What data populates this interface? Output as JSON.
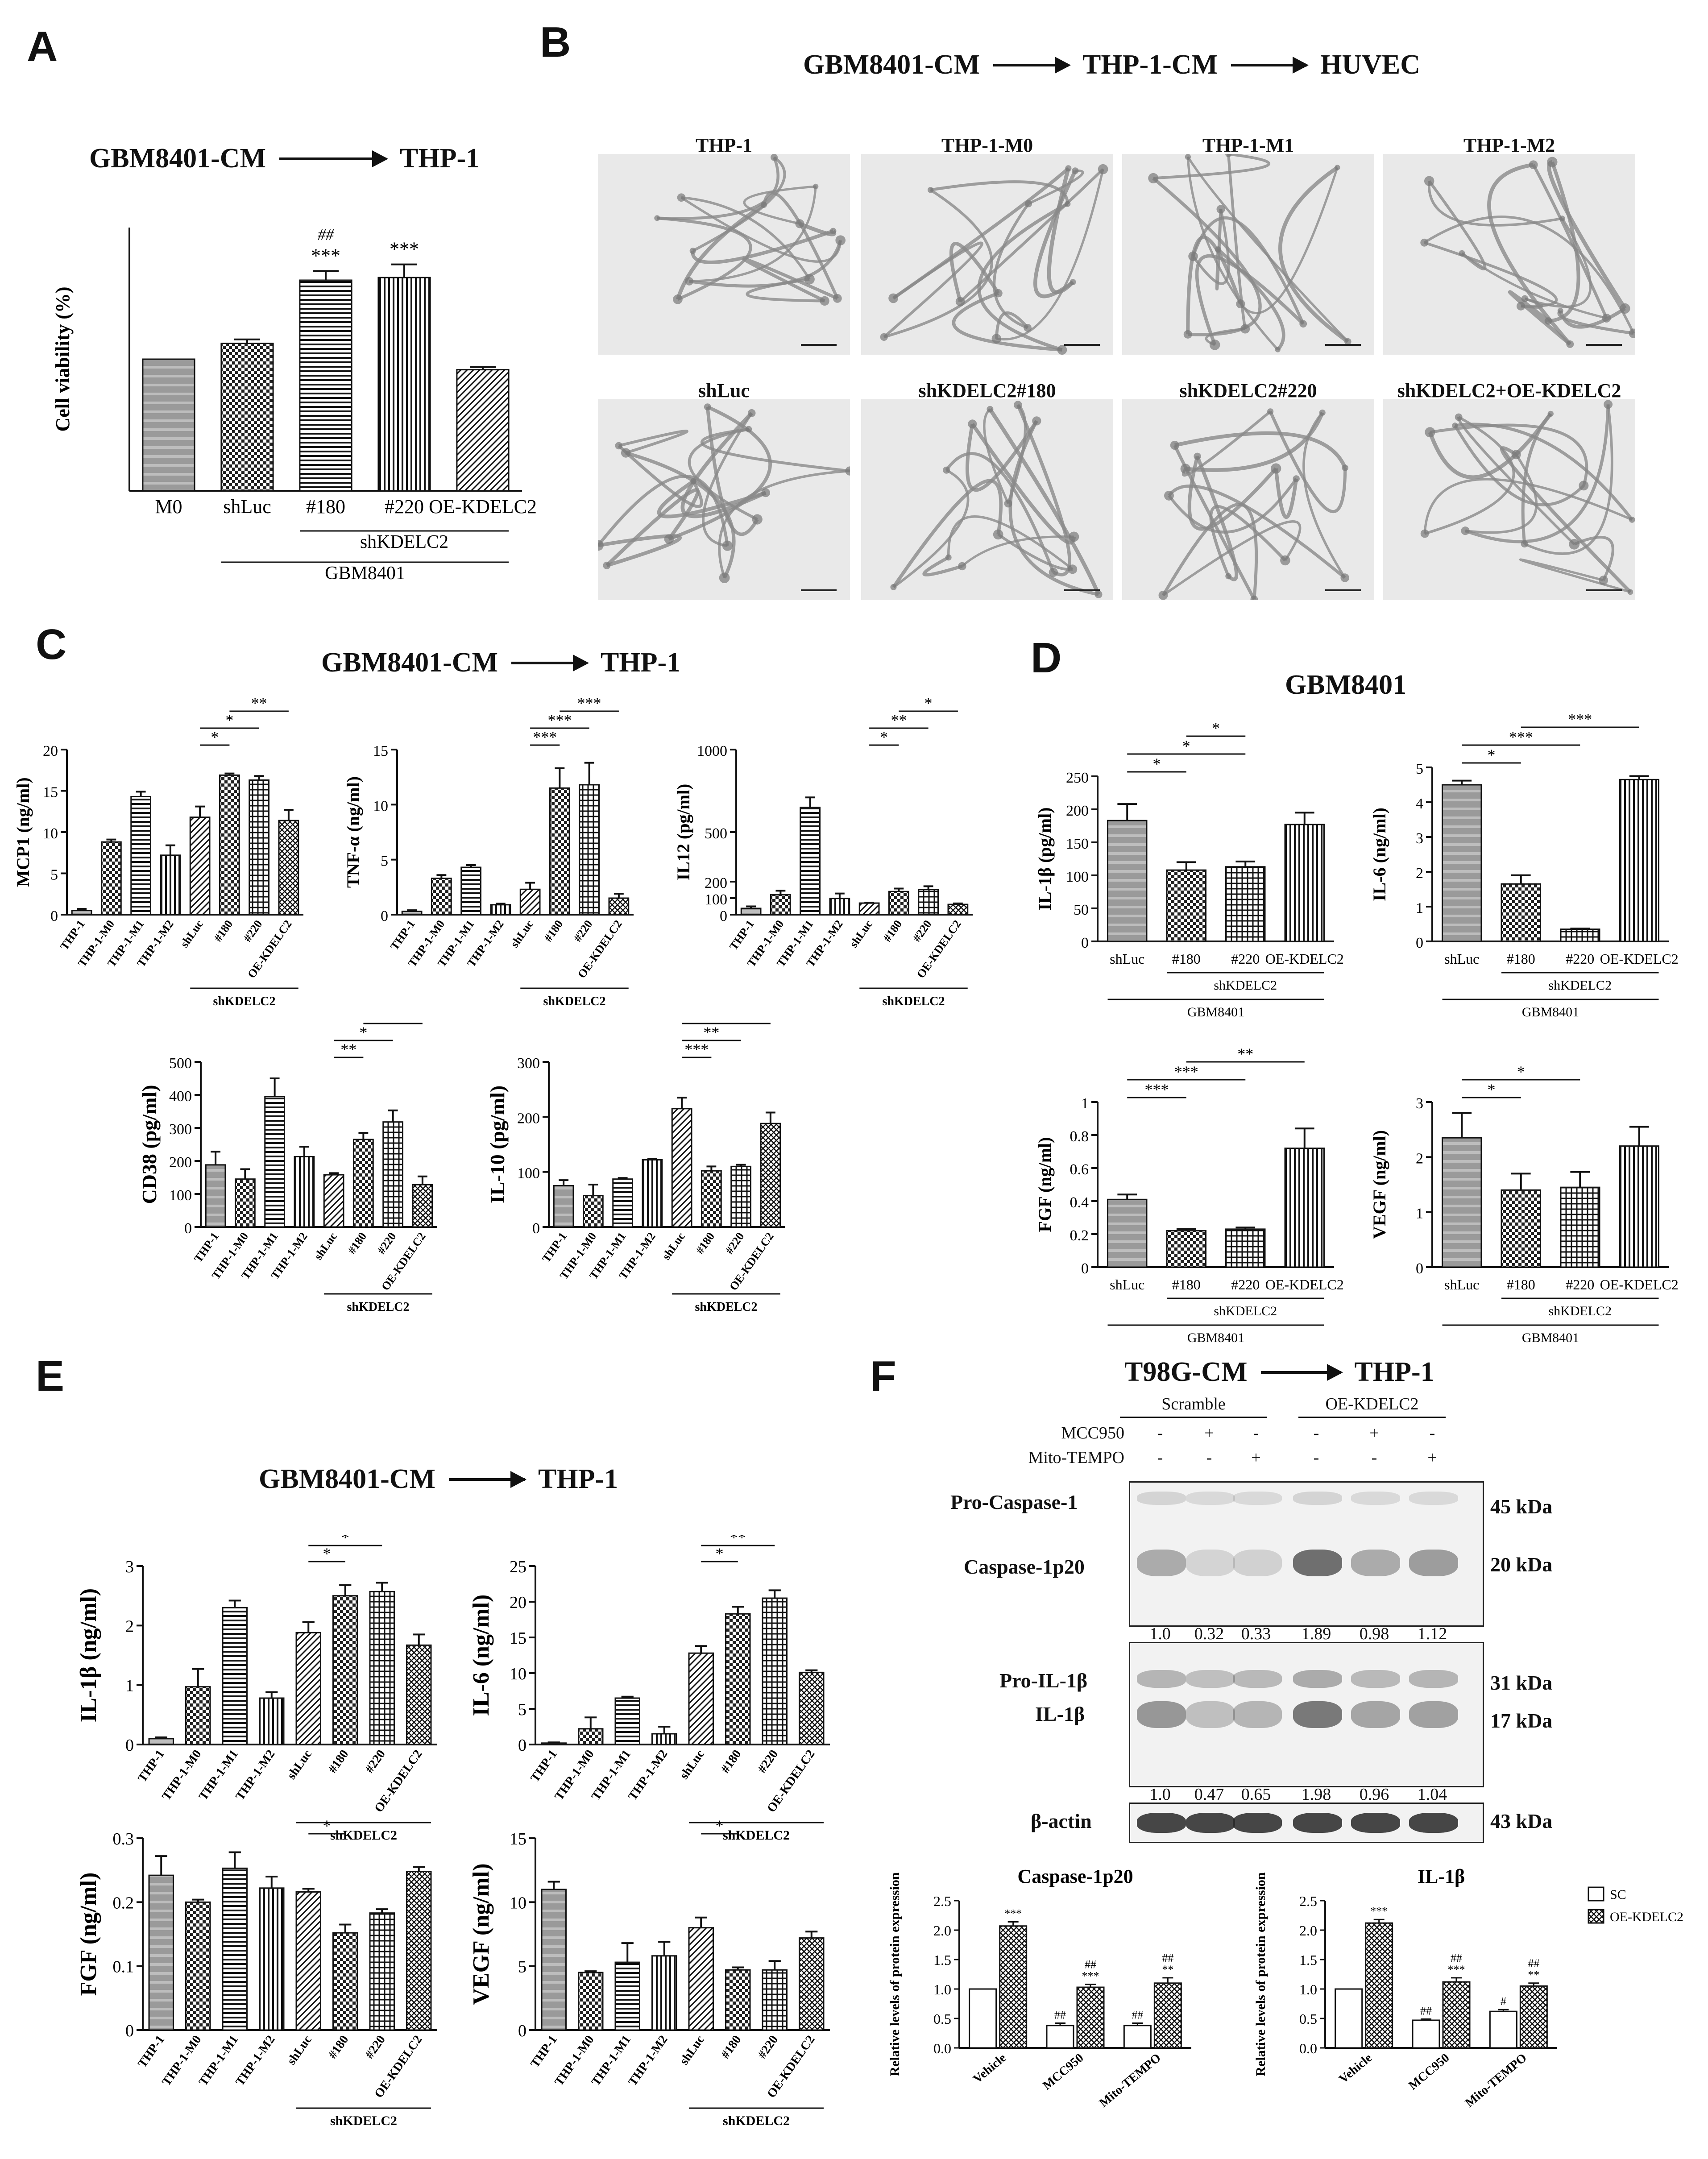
{
  "panels": {
    "A": {
      "letter": "A",
      "flow": {
        "from": "GBM8401-CM",
        "to": "THP-1"
      },
      "chart": {
        "ylabel": "Cell viability (%)",
        "yticks": [
          "0",
          "50",
          "100",
          "150",
          "200"
        ],
        "categories": [
          "M0",
          "shLuc",
          "#180",
          "#220",
          "OE-KDELC2"
        ],
        "group1": "shKDELC2",
        "group2": "GBM8401",
        "sig": [
          "",
          "",
          "***",
          "***",
          ""
        ],
        "sig2": [
          "",
          "",
          "##",
          "",
          ""
        ]
      }
    },
    "B": {
      "letter": "B",
      "flow": {
        "a": "GBM8401-CM",
        "b": "THP-1-CM",
        "c": "HUVEC"
      },
      "images_top": [
        "THP-1",
        "THP-1-M0",
        "THP-1-M1",
        "THP-1-M2"
      ],
      "images_bottom": [
        "shLuc",
        "shKDELC2#180",
        "shKDELC2#220",
        "shKDELC2+OE-KDELC2"
      ]
    },
    "C": {
      "letter": "C",
      "flow": {
        "from": "GBM8401-CM",
        "to": "THP-1"
      },
      "group": "shKDELC2",
      "cats": [
        "THP-1",
        "THP-1-M0",
        "THP-1-M1",
        "THP-1-M2",
        "shLuc",
        "#180",
        "#220",
        "OE-KDELC2"
      ]
    },
    "D": {
      "letter": "D",
      "title": "GBM8401",
      "group1": "shKDELC2",
      "group2": "GBM8401",
      "cats": [
        "shLuc",
        "#180",
        "#220",
        "OE-KDELC2"
      ]
    },
    "E": {
      "letter": "E",
      "flow": {
        "from": "GBM8401-CM",
        "to": "THP-1"
      },
      "group": "shKDELC2",
      "cats": [
        "THP-1",
        "THP-1-M0",
        "THP-1-M1",
        "THP-1-M2",
        "shLuc",
        "#180",
        "#220",
        "OE-KDELC2"
      ]
    },
    "F": {
      "letter": "F",
      "flow": {
        "from": "T98G-CM",
        "to": "THP-1"
      },
      "groups": [
        "Scramble",
        "OE-KDELC2"
      ],
      "rows": [
        {
          "label": "MCC950",
          "signs": [
            "-",
            "+",
            "-",
            "-",
            "+",
            "-"
          ]
        },
        {
          "label": "Mito-TEMPO",
          "signs": [
            "-",
            "-",
            "+",
            "-",
            "-",
            "+"
          ]
        }
      ],
      "blot1": {
        "labels_left": [
          "Pro-Caspase-1",
          "Caspase-1p20"
        ],
        "labels_right": [
          "45 kDa",
          "20 kDa"
        ],
        "quant": [
          "1.0",
          "0.32",
          "0.33",
          "1.89",
          "0.98",
          "1.12"
        ]
      },
      "blot2": {
        "labels_left": [
          "Pro-IL-1β",
          "IL-1β"
        ],
        "labels_right": [
          "31 kDa",
          "17 kDa"
        ],
        "quant": [
          "1.0",
          "0.47",
          "0.65",
          "1.98",
          "0.96",
          "1.04"
        ]
      },
      "blot3": {
        "labels_left": [
          "β-actin"
        ],
        "labels_right": [
          "43 kDa"
        ]
      },
      "legend": [
        "SC",
        "OE-KDELC2"
      ]
    }
  },
  "chart_data": [
    {
      "id": "A",
      "type": "bar",
      "categories": [
        "M0",
        "shLuc",
        "#180",
        "#220",
        "OE-KDELC2"
      ],
      "values": [
        100,
        112,
        160,
        162,
        92
      ],
      "errors": [
        0,
        3,
        7,
        10,
        2
      ],
      "ylabel": "Cell viability (%)",
      "ylim": [
        0,
        200
      ]
    },
    {
      "id": "C1",
      "type": "bar",
      "ylabel": "MCP1 (ng/ml)",
      "ylim": [
        0,
        20
      ],
      "yticks": [
        0,
        5,
        10,
        15,
        20
      ],
      "values": [
        0.5,
        8.8,
        14.3,
        7.2,
        11.8,
        16.9,
        16.3,
        11.4
      ],
      "errors": [
        0.2,
        0.3,
        0.6,
        1.2,
        1.3,
        0.2,
        0.5,
        1.3
      ],
      "sig": [
        {
          "from": 4,
          "to": 5,
          "label": "*"
        },
        {
          "from": 4,
          "to": 6,
          "label": "*"
        },
        {
          "from": 5,
          "to": 7,
          "label": "**"
        },
        {
          "from": 6,
          "to": 7,
          "label": "*"
        }
      ]
    },
    {
      "id": "C2",
      "type": "bar",
      "ylabel": "TNF-α (ng/ml)",
      "ylim": [
        0,
        15
      ],
      "yticks": [
        0,
        5,
        10,
        15
      ],
      "values": [
        0.3,
        3.3,
        4.3,
        0.9,
        2.3,
        11.5,
        11.8,
        1.5
      ],
      "errors": [
        0.1,
        0.3,
        0.2,
        0.1,
        0.6,
        1.8,
        2.0,
        0.4
      ],
      "sig": [
        {
          "from": 4,
          "to": 5,
          "label": "***"
        },
        {
          "from": 4,
          "to": 6,
          "label": "***"
        },
        {
          "from": 5,
          "to": 7,
          "label": "***"
        },
        {
          "from": 6,
          "to": 7,
          "label": "***"
        }
      ]
    },
    {
      "id": "C3",
      "type": "bar",
      "ylabel": "IL12 (pg/ml)",
      "ylim": [
        0,
        1000
      ],
      "yticks": [
        0,
        100,
        200,
        500,
        1000
      ],
      "values": [
        38,
        120,
        650,
        98,
        70,
        140,
        152,
        62
      ],
      "errors": [
        12,
        25,
        60,
        30,
        3,
        18,
        20,
        6
      ],
      "sig": [
        {
          "from": 4,
          "to": 5,
          "label": "*"
        },
        {
          "from": 4,
          "to": 6,
          "label": "**"
        },
        {
          "from": 5,
          "to": 7,
          "label": "*"
        },
        {
          "from": 6,
          "to": 7,
          "label": "**"
        }
      ]
    },
    {
      "id": "C4",
      "type": "bar",
      "ylabel": "CD38 (pg/ml)",
      "ylim": [
        0,
        500
      ],
      "yticks": [
        0,
        100,
        200,
        300,
        400,
        500
      ],
      "values": [
        188,
        145,
        395,
        213,
        158,
        265,
        318,
        128
      ],
      "errors": [
        40,
        30,
        55,
        30,
        5,
        20,
        35,
        25
      ],
      "sig": [
        {
          "from": 4,
          "to": 5,
          "label": "**"
        },
        {
          "from": 4,
          "to": 6,
          "label": "*"
        },
        {
          "from": 5,
          "to": 7,
          "label": "*"
        },
        {
          "from": 6,
          "to": 7,
          "label": "*"
        }
      ]
    },
    {
      "id": "C5",
      "type": "bar",
      "ylabel": "IL-10 (pg/ml)",
      "ylim": [
        0,
        300
      ],
      "yticks": [
        0,
        100,
        200,
        300
      ],
      "values": [
        75,
        57,
        87,
        122,
        215,
        102,
        110,
        188
      ],
      "errors": [
        10,
        20,
        2,
        2,
        20,
        8,
        3,
        20
      ],
      "sig": [
        {
          "from": 4,
          "to": 5,
          "label": "***"
        },
        {
          "from": 4,
          "to": 6,
          "label": "**"
        },
        {
          "from": 4,
          "to": 7,
          "label": "*"
        },
        {
          "from": 5,
          "to": 7,
          "label": "*"
        }
      ]
    },
    {
      "id": "D1",
      "type": "bar",
      "ylabel": "IL-1β (pg/ml)",
      "ylim": [
        0,
        250
      ],
      "yticks": [
        0,
        50,
        100,
        150,
        200,
        250
      ],
      "values": [
        183,
        108,
        113,
        177
      ],
      "errors": [
        25,
        12,
        8,
        18
      ],
      "sig": [
        {
          "from": 0,
          "to": 1,
          "label": "*"
        },
        {
          "from": 0,
          "to": 2,
          "label": "*"
        },
        {
          "from": 1,
          "to": 2,
          "label": "*"
        }
      ]
    },
    {
      "id": "D2",
      "type": "bar",
      "ylabel": "IL-6 (ng/ml)",
      "ylim": [
        0,
        5
      ],
      "yticks": [
        0,
        1,
        2,
        3,
        4,
        5
      ],
      "values": [
        4.5,
        1.65,
        0.35,
        4.65
      ],
      "errors": [
        0.12,
        0.25,
        0.02,
        0.1
      ],
      "sig": [
        {
          "from": 0,
          "to": 1,
          "label": "*"
        },
        {
          "from": 0,
          "to": 2,
          "label": "***"
        },
        {
          "from": 1,
          "to": 3,
          "label": "***"
        }
      ]
    },
    {
      "id": "D3",
      "type": "bar",
      "ylabel": "FGF (ng/ml)",
      "ylim": [
        0,
        1.0
      ],
      "yticks": [
        0,
        0.2,
        0.4,
        0.6,
        0.8,
        1.0
      ],
      "values": [
        0.41,
        0.22,
        0.23,
        0.72
      ],
      "errors": [
        0.03,
        0.01,
        0.01,
        0.12
      ],
      "sig": [
        {
          "from": 0,
          "to": 1,
          "label": "***"
        },
        {
          "from": 0,
          "to": 2,
          "label": "***"
        },
        {
          "from": 1,
          "to": 3,
          "label": "**"
        }
      ]
    },
    {
      "id": "D4",
      "type": "bar",
      "ylabel": "VEGF (ng/ml)",
      "ylim": [
        0,
        3
      ],
      "yticks": [
        0,
        1,
        2,
        3
      ],
      "values": [
        2.35,
        1.4,
        1.45,
        2.2
      ],
      "errors": [
        0.45,
        0.3,
        0.28,
        0.35
      ],
      "sig": [
        {
          "from": 0,
          "to": 1,
          "label": "*"
        },
        {
          "from": 0,
          "to": 2,
          "label": "*"
        }
      ]
    },
    {
      "id": "E1",
      "type": "bar",
      "ylabel": "IL-1β (ng/ml)",
      "ylim": [
        0,
        3
      ],
      "yticks": [
        0,
        1,
        2,
        3
      ],
      "values": [
        0.1,
        0.97,
        2.3,
        0.78,
        1.88,
        2.5,
        2.57,
        1.67
      ],
      "errors": [
        0.02,
        0.3,
        0.12,
        0.1,
        0.18,
        0.18,
        0.15,
        0.18
      ],
      "sig": [
        {
          "from": 4,
          "to": 5,
          "label": "*"
        },
        {
          "from": 4,
          "to": 6,
          "label": "*"
        },
        {
          "from": 4,
          "to": 7,
          "label": "*"
        }
      ]
    },
    {
      "id": "E2",
      "type": "bar",
      "ylabel": "IL-6 (ng/ml)",
      "ylim": [
        0,
        25
      ],
      "yticks": [
        0,
        5,
        10,
        15,
        20,
        25
      ],
      "values": [
        0.2,
        2.2,
        6.5,
        1.5,
        12.8,
        18.3,
        20.5,
        10.1
      ],
      "errors": [
        0.1,
        1.6,
        0.2,
        1.0,
        1.0,
        1.0,
        1.1,
        0.3
      ],
      "sig": [
        {
          "from": 4,
          "to": 5,
          "label": "*"
        },
        {
          "from": 4,
          "to": 6,
          "label": "**"
        },
        {
          "from": 4,
          "to": 7,
          "label": "***"
        }
      ]
    },
    {
      "id": "E3",
      "type": "bar",
      "ylabel": "FGF (ng/ml)",
      "ylim": [
        0,
        0.3
      ],
      "yticks": [
        0,
        0.1,
        0.2,
        0.3
      ],
      "values": [
        0.242,
        0.2,
        0.253,
        0.222,
        0.216,
        0.152,
        0.183,
        0.248
      ],
      "errors": [
        0.03,
        0.004,
        0.025,
        0.018,
        0.005,
        0.013,
        0.006,
        0.007
      ],
      "sig": [
        {
          "from": 4,
          "to": 5,
          "label": "*"
        },
        {
          "from": 4,
          "to": 6,
          "label": "*"
        }
      ]
    },
    {
      "id": "E4",
      "type": "bar",
      "ylabel": "VEGF (ng/ml)",
      "ylim": [
        0,
        15
      ],
      "yticks": [
        0,
        5,
        10,
        15
      ],
      "values": [
        11,
        4.5,
        5.3,
        5.8,
        8.0,
        4.7,
        4.7,
        7.2
      ],
      "errors": [
        0.6,
        0.1,
        1.5,
        1.1,
        0.8,
        0.2,
        0.7,
        0.5
      ],
      "sig": [
        {
          "from": 4,
          "to": 5,
          "label": "*"
        },
        {
          "from": 4,
          "to": 6,
          "label": "*"
        },
        {
          "from": 4,
          "to": 7,
          "label": "*"
        }
      ]
    },
    {
      "id": "F1",
      "type": "bar",
      "title": "Caspase-1p20",
      "ylabel": "Relative levels of protein expression",
      "ylim": [
        0,
        2.5
      ],
      "yticks": [
        0.0,
        0.5,
        1.0,
        1.5,
        2.0,
        2.5
      ],
      "categories": [
        "Vehicle",
        "MCC950",
        "Mito-TEMPO"
      ],
      "series": [
        {
          "name": "SC",
          "values": [
            1.0,
            0.38,
            0.38
          ]
        },
        {
          "name": "OE-KDELC2",
          "values": [
            2.07,
            1.03,
            1.1
          ]
        }
      ],
      "errors": [
        [
          0.0,
          0.04,
          0.04
        ],
        [
          0.07,
          0.05,
          0.09
        ]
      ],
      "sig_sc": [
        "",
        "##",
        "##"
      ],
      "sig_oe": [
        "***",
        "##\n***",
        "##\n**"
      ]
    },
    {
      "id": "F2",
      "type": "bar",
      "title": "IL-1β",
      "ylabel": "Relative levels of protein expression",
      "ylim": [
        0,
        2.5
      ],
      "yticks": [
        0.0,
        0.5,
        1.0,
        1.5,
        2.0,
        2.5
      ],
      "categories": [
        "Vehicle",
        "MCC950",
        "Mito-TEMPO"
      ],
      "series": [
        {
          "name": "SC",
          "values": [
            1.0,
            0.47,
            0.62
          ]
        },
        {
          "name": "OE-KDELC2",
          "values": [
            2.12,
            1.12,
            1.05
          ]
        }
      ],
      "errors": [
        [
          0.0,
          0.02,
          0.03
        ],
        [
          0.06,
          0.07,
          0.05
        ]
      ],
      "sig_sc": [
        "",
        "##",
        "#"
      ],
      "sig_oe": [
        "***",
        "##\n***",
        "##\n**"
      ]
    }
  ]
}
